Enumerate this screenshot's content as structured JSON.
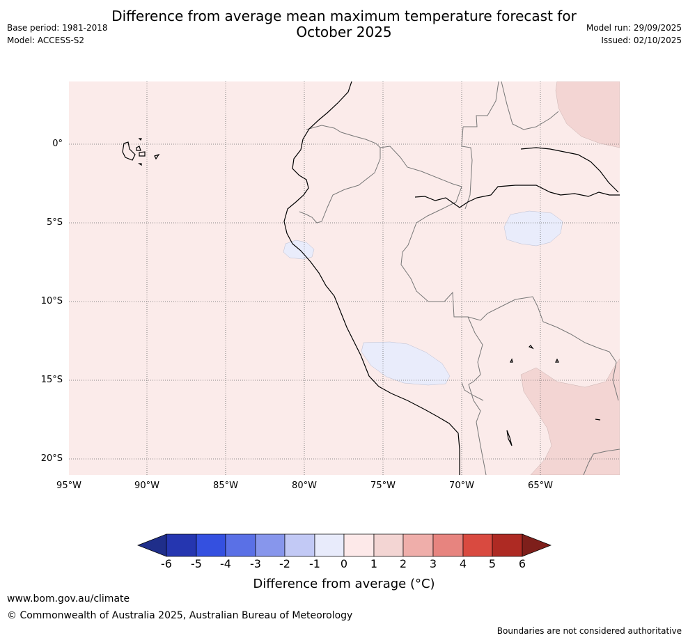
{
  "header": {
    "title_line1": "Difference from average mean maximum temperature forecast for",
    "title_line2": "October 2025",
    "base_period": "Base period: 1981-2018",
    "model": "Model: ACCESS-S2",
    "model_run": "Model run: 29/09/2025",
    "issued": "Issued: 02/10/2025"
  },
  "map": {
    "lat_labels": [
      "0°",
      "5°S",
      "10°S",
      "15°S",
      "20°S"
    ],
    "lon_labels": [
      "95°W",
      "90°W",
      "85°W",
      "80°W",
      "75°W",
      "70°W",
      "65°W"
    ],
    "region_colors": {
      "zero_to_one": "#fbebea",
      "one_to_two": "#f3d5d3",
      "minus_one_to_zero": "#e9ecfb"
    }
  },
  "colorbar": {
    "ticks": [
      "-6",
      "-5",
      "-4",
      "-3",
      "-2",
      "-1",
      "0",
      "1",
      "2",
      "3",
      "4",
      "5",
      "6"
    ],
    "colors": [
      "#1f2e8a",
      "#2536b0",
      "#3450e0",
      "#5a70e6",
      "#8796ec",
      "#c2c9f5",
      "#e8ebfb",
      "#fde9e9",
      "#f3d5d3",
      "#efaeaa",
      "#e7847f",
      "#d94a40",
      "#ae2a23",
      "#7e1f1b"
    ],
    "label": "Difference from average (°C)"
  },
  "footer": {
    "url": "www.bom.gov.au/climate",
    "copyright": "© Commonwealth of Australia 2025, Australian Bureau of Meteorology",
    "disclaimer": "Boundaries are not considered authoritative"
  }
}
